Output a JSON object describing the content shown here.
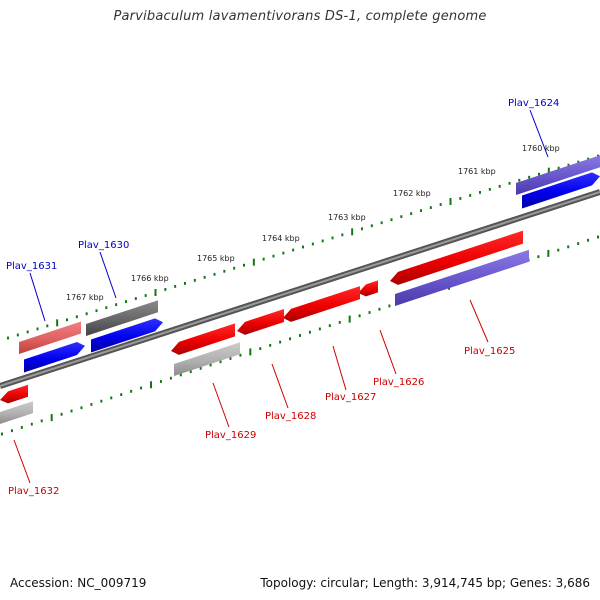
{
  "title": "Parvibaculum lavamentivorans DS-1, complete genome",
  "footer": {
    "accession": "Accession: NC_009719",
    "summary": "Topology: circular; Length: 3,914,745 bp; Genes: 3,686"
  },
  "scale_labels": [
    "1760 kbp",
    "1761 kbp",
    "1762 kbp",
    "1763 kbp",
    "1764 kbp",
    "1765 kbp",
    "1766 kbp",
    "1767 kbp"
  ],
  "genes": [
    {
      "id": "Plav_1624",
      "strand": "plus",
      "color": "#0000cc"
    },
    {
      "id": "Plav_1625",
      "strand": "minus",
      "color": "#cc0000"
    },
    {
      "id": "Plav_1626",
      "strand": "minus",
      "color": "#cc0000"
    },
    {
      "id": "Plav_1627",
      "strand": "minus",
      "color": "#cc0000"
    },
    {
      "id": "Plav_1628",
      "strand": "minus",
      "color": "#cc0000"
    },
    {
      "id": "Plav_1629",
      "strand": "minus",
      "color": "#cc0000"
    },
    {
      "id": "Plav_1630",
      "strand": "plus",
      "color": "#0000cc"
    },
    {
      "id": "Plav_1631",
      "strand": "plus",
      "color": "#0000cc"
    },
    {
      "id": "Plav_1632",
      "strand": "minus",
      "color": "#cc0000"
    }
  ],
  "colors": {
    "backbone": "#777777",
    "tick": "#117711",
    "cds_forward": "#0000ee",
    "cds_reverse": "#ee0000",
    "cog_purple": "#6655cc",
    "cog_gray": "#777777",
    "cog_pink": "#dd5555",
    "cog_lightgray": "#aaaaaa"
  }
}
